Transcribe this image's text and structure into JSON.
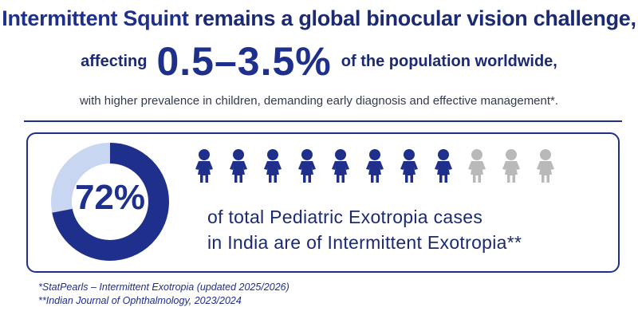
{
  "headline": {
    "line1_emphasis": "Intermittent Squint",
    "line1_rest": "remains a global binocular vision challenge,",
    "line2_prefix": "affecting",
    "line2_stat": "0.5–3.5%",
    "line2_suffix": "of the population worldwide,",
    "subline": "with higher prevalence in children, demanding early diagnosis and effective management*."
  },
  "stat": {
    "percent_label": "72%",
    "percent_value": 0.72,
    "text_line1": "of total Pediatric Exotropia cases",
    "text_line2": "in India are of Intermittent Exotropia**",
    "figures_total": 11,
    "figures_highlighted": 8
  },
  "footnotes": {
    "note1": "*StatPearls – Intermittent Exotropia (updated 2025/2026)",
    "note2": "**Indian Journal of Ophthalmology, 2023/2024"
  },
  "colors": {
    "primary": "#1e2f8c",
    "donut_track": "#c9d6f2",
    "figure_active": "#1e2f8c",
    "figure_inactive": "#b9b9b9"
  },
  "icons": {
    "figure": "child-figure-icon"
  }
}
